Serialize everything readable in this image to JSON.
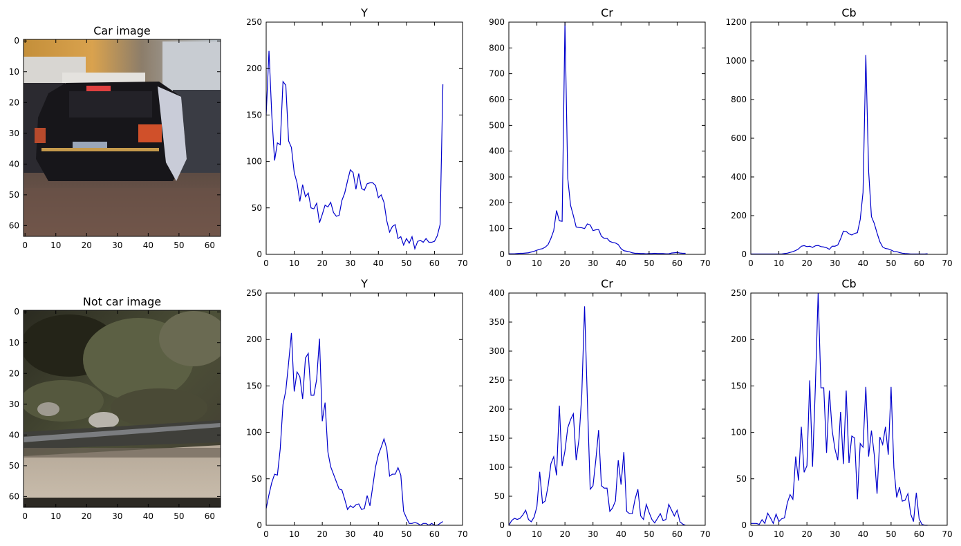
{
  "chart_data": [
    {
      "type": "image",
      "title": "Car image",
      "description_colors": [
        "#c9a25a",
        "#1a1a1e",
        "#6e5a4a",
        "#9aa3ad"
      ],
      "xlim": [
        0,
        63
      ],
      "ylim": [
        63,
        0
      ],
      "xticks": [
        0,
        10,
        20,
        30,
        40,
        50,
        60
      ],
      "yticks": [
        0,
        10,
        20,
        30,
        40,
        50,
        60
      ]
    },
    {
      "type": "line",
      "title": "Y",
      "xlim": [
        0,
        70
      ],
      "ylim": [
        0,
        250
      ],
      "xticks": [
        0,
        10,
        20,
        30,
        40,
        50,
        60,
        70
      ],
      "yticks": [
        0,
        50,
        100,
        150,
        200,
        250
      ],
      "values": [
        150,
        219,
        150,
        101,
        120,
        118,
        186,
        182,
        122,
        115,
        88,
        77,
        57,
        75,
        62,
        66,
        50,
        49,
        55,
        34,
        43,
        53,
        51,
        56,
        45,
        41,
        42,
        58,
        66,
        79,
        91,
        88,
        70,
        87,
        71,
        69,
        76,
        77,
        77,
        74,
        61,
        64,
        56,
        36,
        24,
        30,
        32,
        17,
        19,
        10,
        17,
        12,
        19,
        6,
        14,
        15,
        13,
        17,
        13,
        13,
        14,
        20,
        32,
        183
      ],
      "color": "#0000cc"
    },
    {
      "type": "line",
      "title": "Cr",
      "xlim": [
        0,
        70
      ],
      "ylim": [
        0,
        900
      ],
      "xticks": [
        0,
        10,
        20,
        30,
        40,
        50,
        60,
        70
      ],
      "yticks": [
        0,
        100,
        200,
        300,
        400,
        500,
        600,
        700,
        800,
        900
      ],
      "values": [
        2,
        2,
        2,
        3,
        4,
        4,
        5,
        6,
        9,
        12,
        16,
        20,
        22,
        28,
        38,
        62,
        92,
        170,
        130,
        128,
        900,
        295,
        190,
        150,
        106,
        104,
        103,
        100,
        118,
        114,
        92,
        95,
        96,
        70,
        62,
        62,
        50,
        46,
        44,
        38,
        22,
        14,
        12,
        10,
        6,
        4,
        4,
        3,
        3,
        2,
        3,
        3,
        4,
        3,
        3,
        3,
        2,
        2,
        5,
        6,
        7,
        5,
        4,
        4
      ],
      "color": "#0000cc"
    },
    {
      "type": "line",
      "title": "Cb",
      "xlim": [
        0,
        70
      ],
      "ylim": [
        0,
        1200
      ],
      "xticks": [
        0,
        10,
        20,
        30,
        40,
        50,
        60,
        70
      ],
      "yticks": [
        0,
        200,
        400,
        600,
        800,
        1000,
        1200
      ],
      "values": [
        2,
        2,
        2,
        2,
        2,
        2,
        2,
        2,
        2,
        2,
        2,
        2,
        4,
        6,
        10,
        14,
        20,
        28,
        42,
        45,
        40,
        42,
        36,
        44,
        46,
        40,
        38,
        34,
        26,
        42,
        42,
        48,
        80,
        120,
        118,
        106,
        100,
        108,
        112,
        180,
        320,
        1030,
        430,
        195,
        160,
        110,
        65,
        38,
        30,
        28,
        22,
        15,
        14,
        9,
        6,
        4,
        3,
        2,
        2,
        2,
        2,
        2,
        2,
        3
      ],
      "color": "#0000cc"
    },
    {
      "type": "image",
      "title": "Not car image",
      "description_colors": [
        "#3b3a2c",
        "#5f6048",
        "#8a8579",
        "#c4b8a8"
      ],
      "xlim": [
        0,
        63
      ],
      "ylim": [
        63,
        0
      ],
      "xticks": [
        0,
        10,
        20,
        30,
        40,
        50,
        60
      ],
      "yticks": [
        0,
        10,
        20,
        30,
        40,
        50,
        60
      ]
    },
    {
      "type": "line",
      "title": "Y",
      "xlim": [
        0,
        70
      ],
      "ylim": [
        0,
        250
      ],
      "xticks": [
        0,
        10,
        20,
        30,
        40,
        50,
        60,
        70
      ],
      "yticks": [
        0,
        50,
        100,
        150,
        200,
        250
      ],
      "values": [
        18,
        33,
        46,
        55,
        54,
        82,
        130,
        145,
        175,
        207,
        144,
        165,
        160,
        136,
        180,
        185,
        140,
        140,
        157,
        201,
        112,
        132,
        79,
        63,
        55,
        47,
        39,
        38,
        28,
        17,
        21,
        19,
        22,
        23,
        17,
        18,
        32,
        21,
        42,
        63,
        76,
        84,
        93,
        82,
        53,
        55,
        55,
        62,
        54,
        15,
        8,
        2,
        2,
        3,
        2,
        0,
        2,
        2,
        0,
        2,
        0,
        0,
        2,
        4
      ],
      "color": "#0000cc"
    },
    {
      "type": "line",
      "title": "Cr",
      "xlim": [
        0,
        70
      ],
      "ylim": [
        0,
        400
      ],
      "xticks": [
        0,
        10,
        20,
        30,
        40,
        50,
        60,
        70
      ],
      "yticks": [
        0,
        50,
        100,
        150,
        200,
        250,
        300,
        350,
        400
      ],
      "values": [
        0,
        8,
        12,
        10,
        12,
        18,
        26,
        10,
        6,
        14,
        32,
        92,
        38,
        42,
        68,
        106,
        118,
        86,
        206,
        102,
        128,
        168,
        182,
        192,
        112,
        148,
        225,
        377,
        215,
        62,
        68,
        112,
        164,
        68,
        64,
        64,
        24,
        30,
        42,
        112,
        70,
        126,
        24,
        20,
        20,
        45,
        62,
        16,
        10,
        36,
        22,
        10,
        4,
        12,
        20,
        8,
        10,
        36,
        26,
        16,
        26,
        6,
        2,
        0
      ],
      "color": "#0000cc"
    },
    {
      "type": "line",
      "title": "Cb",
      "xlim": [
        0,
        70
      ],
      "ylim": [
        0,
        250
      ],
      "xticks": [
        0,
        10,
        20,
        30,
        40,
        50,
        60,
        70
      ],
      "yticks": [
        0,
        50,
        100,
        150,
        200,
        250
      ],
      "values": [
        2,
        2,
        2,
        1,
        6,
        2,
        13,
        8,
        2,
        12,
        4,
        7,
        8,
        24,
        33,
        28,
        74,
        48,
        106,
        57,
        64,
        156,
        63,
        148,
        250,
        148,
        148,
        78,
        145,
        102,
        82,
        70,
        122,
        66,
        145,
        67,
        96,
        94,
        28,
        88,
        84,
        149,
        74,
        102,
        76,
        34,
        95,
        87,
        106,
        76,
        149,
        62,
        30,
        41,
        26,
        27,
        34,
        12,
        4,
        35,
        7,
        1,
        0,
        0
      ],
      "color": "#0000cc"
    }
  ]
}
